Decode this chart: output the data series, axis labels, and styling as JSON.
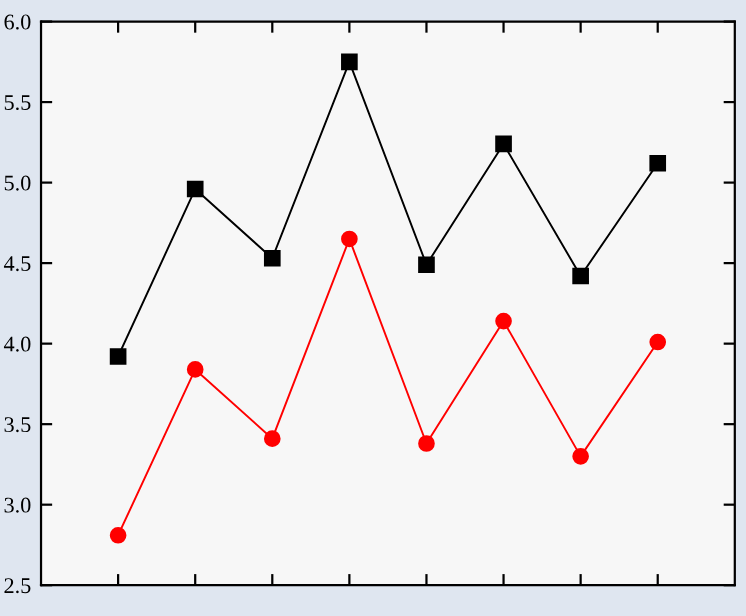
{
  "chart_data": {
    "type": "line",
    "categories": [
      null,
      null,
      null,
      null,
      null,
      null,
      null,
      null
    ],
    "series": [
      {
        "color": "#000000",
        "marker": "square",
        "values": [
          3.92,
          4.96,
          4.53,
          5.75,
          4.49,
          5.24,
          4.42,
          5.12
        ]
      },
      {
        "color": "#ff0000",
        "marker": "circle",
        "values": [
          2.81,
          3.84,
          3.41,
          4.65,
          3.38,
          4.14,
          3.3,
          4.01
        ]
      }
    ],
    "ylim": [
      2.5,
      6.0
    ],
    "yticks": [
      2.5,
      {
        "value": 3,
        "label": "3.0"
      },
      3.5,
      {
        "value": 4,
        "label": "4.0"
      },
      4.5,
      {
        "value": 5,
        "label": "5.0"
      },
      5.5,
      {
        "value": 6,
        "label": "6.0"
      }
    ],
    "grid": false,
    "line_style": "solid"
  }
}
